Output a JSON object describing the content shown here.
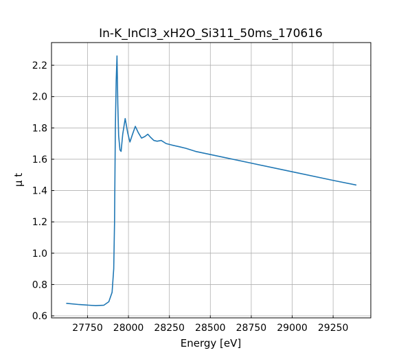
{
  "chart_data": {
    "type": "line",
    "title": "In-K_InCl3_xH2O_Si311_50ms_170616",
    "xlabel": "Energy [eV]",
    "ylabel": "μ t",
    "x": [
      27620,
      27700,
      27800,
      27850,
      27880,
      27900,
      27910,
      27915,
      27920,
      27925,
      27930,
      27935,
      27940,
      27948,
      27955,
      27965,
      27980,
      27995,
      28009,
      28025,
      28042,
      28060,
      28080,
      28100,
      28118,
      28135,
      28155,
      28175,
      28200,
      28230,
      28267,
      28310,
      28350,
      28410,
      28500,
      28750,
      29000,
      29250,
      29392
    ],
    "series": [
      {
        "name": "μ t",
        "color": "#1f77b4",
        "values": [
          0.68,
          0.672,
          0.665,
          0.668,
          0.69,
          0.75,
          0.9,
          1.2,
          1.8,
          2.1,
          2.26,
          1.95,
          1.75,
          1.66,
          1.65,
          1.76,
          1.86,
          1.77,
          1.71,
          1.76,
          1.81,
          1.77,
          1.735,
          1.745,
          1.76,
          1.74,
          1.72,
          1.715,
          1.72,
          1.7,
          1.69,
          1.68,
          1.67,
          1.65,
          1.63,
          1.575,
          1.52,
          1.465,
          1.435
        ]
      }
    ],
    "xlim": [
      27530,
      29480
    ],
    "ylim": [
      0.587,
      2.345
    ],
    "xticks": [
      27750,
      28000,
      28250,
      28500,
      28750,
      29000,
      29250
    ],
    "yticks": [
      0.6,
      0.8,
      {
        "value": 1.0,
        "label": "1.0"
      },
      1.2,
      1.4,
      1.6,
      1.8,
      {
        "value": 2.0,
        "label": "2.0"
      },
      2.2
    ],
    "grid": true
  }
}
